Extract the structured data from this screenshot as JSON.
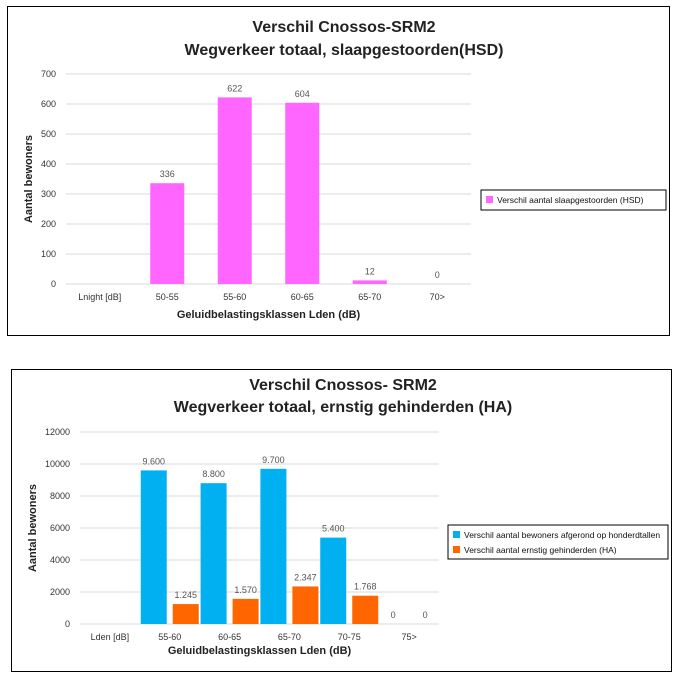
{
  "chart_data": [
    {
      "type": "bar",
      "title": [
        "Verschil Cnossos-SRM2",
        "Wegverkeer totaal, slaapgestoorden(HSD)"
      ],
      "xlabel": "Geluidbelastingsklassen Lden (dB)",
      "ylabel": "Aantal bewoners",
      "ylim": [
        0,
        700
      ],
      "yticks": [
        "0",
        "100",
        "200",
        "300",
        "400",
        "500",
        "600",
        "700"
      ],
      "grid": true,
      "legend_position": "right",
      "categories": [
        "Lnight [dB]",
        "50-55",
        "55-60",
        "60-65",
        "65-70",
        "70>"
      ],
      "series": [
        {
          "name": "Verschil aantal slaapgestoorden (HSD)",
          "color": "#ff66ff",
          "values": [
            null,
            336,
            622,
            604,
            12,
            0
          ],
          "labels": [
            "",
            "336",
            "622",
            "604",
            "12",
            "0"
          ]
        }
      ]
    },
    {
      "type": "bar",
      "title": [
        "Verschil Cnossos- SRM2",
        "Wegverkeer totaal, ernstig gehinderden (HA)"
      ],
      "xlabel": "Geluidbelastingsklassen Lden (dB)",
      "ylabel": "Aantal bewoners",
      "ylim": [
        0,
        12000
      ],
      "yticks": [
        "0",
        "2000",
        "4000",
        "6000",
        "8000",
        "10000",
        "12000"
      ],
      "grid": true,
      "legend_position": "right",
      "categories": [
        "Lden [dB]",
        "55-60",
        "60-65",
        "65-70",
        "70-75",
        "75>"
      ],
      "series": [
        {
          "name": "Verschil aantal bewoners afgerond op honderdtallen",
          "color": "#00b0f0",
          "values": [
            null,
            9600,
            8800,
            9700,
            5400,
            0
          ],
          "labels": [
            "",
            "9.600",
            "8.800",
            "9.700",
            "5.400",
            "0"
          ]
        },
        {
          "name": "Verschil aantal ernstig gehinderden (HA)",
          "color": "#ff6600",
          "values": [
            null,
            1245,
            1570,
            2347,
            1768,
            0
          ],
          "labels": [
            "",
            "1.245",
            "1.570",
            "2.347",
            "1.768",
            "0"
          ]
        }
      ]
    }
  ]
}
